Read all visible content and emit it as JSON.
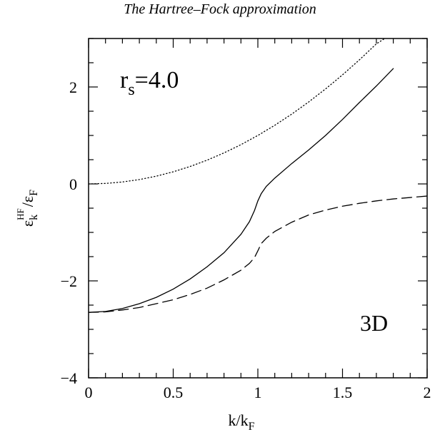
{
  "page_title": "The Hartree–Fock approximation",
  "chart_data": {
    "type": "line",
    "xlabel_main": "k/k",
    "xlabel_sub": "F",
    "ylabel": {
      "eps1": "ε",
      "eps1_sub": "k",
      "eps1_sup": "HF",
      "slash": "/",
      "eps2": "ε",
      "eps2_sub": "F"
    },
    "xlim": [
      0,
      2
    ],
    "ylim": [
      -4,
      3
    ],
    "xticks": [
      {
        "value": 0,
        "label": "0"
      },
      {
        "value": 0.5,
        "label": "0.5"
      },
      {
        "value": 1,
        "label": "1"
      },
      {
        "value": 1.5,
        "label": "1.5"
      },
      {
        "value": 2,
        "label": "2"
      }
    ],
    "yticks": [
      {
        "value": -4,
        "label": "−4"
      },
      {
        "value": -2,
        "label": "−2"
      },
      {
        "value": 0,
        "label": "0"
      },
      {
        "value": 2,
        "label": "2"
      }
    ],
    "annotations": {
      "rs_main": "r",
      "rs_sub": "s",
      "rs_value": "=4.0",
      "dim": "3D"
    },
    "series": [
      {
        "style": "dotted",
        "x": [
          0,
          0.1,
          0.2,
          0.3,
          0.4,
          0.5,
          0.6,
          0.7,
          0.8,
          0.9,
          1.0,
          1.1,
          1.2,
          1.3,
          1.4,
          1.5,
          1.6,
          1.7,
          1.75
        ],
        "y": [
          0,
          0.01,
          0.04,
          0.09,
          0.16,
          0.25,
          0.36,
          0.49,
          0.64,
          0.81,
          1.0,
          1.21,
          1.44,
          1.69,
          1.96,
          2.25,
          2.56,
          2.89,
          3.0
        ]
      },
      {
        "style": "solid",
        "x": [
          0,
          0.1,
          0.2,
          0.3,
          0.4,
          0.5,
          0.6,
          0.7,
          0.8,
          0.9,
          0.95,
          0.98,
          1.0,
          1.02,
          1.05,
          1.1,
          1.2,
          1.3,
          1.4,
          1.5,
          1.6,
          1.7,
          1.8
        ],
        "y": [
          -2.65,
          -2.63,
          -2.57,
          -2.47,
          -2.34,
          -2.17,
          -1.96,
          -1.71,
          -1.42,
          -1.04,
          -0.78,
          -0.55,
          -0.35,
          -0.2,
          -0.05,
          0.12,
          0.42,
          0.7,
          1.0,
          1.33,
          1.68,
          2.02,
          2.38
        ]
      },
      {
        "style": "dashed",
        "x": [
          0,
          0.1,
          0.2,
          0.3,
          0.4,
          0.5,
          0.6,
          0.7,
          0.8,
          0.9,
          0.95,
          0.98,
          1.0,
          1.02,
          1.05,
          1.1,
          1.2,
          1.3,
          1.4,
          1.5,
          1.6,
          1.7,
          1.8,
          1.9,
          2.0
        ],
        "y": [
          -2.65,
          -2.64,
          -2.6,
          -2.55,
          -2.47,
          -2.39,
          -2.28,
          -2.15,
          -1.98,
          -1.78,
          -1.64,
          -1.52,
          -1.38,
          -1.23,
          -1.12,
          -0.98,
          -0.79,
          -0.64,
          -0.54,
          -0.46,
          -0.4,
          -0.35,
          -0.31,
          -0.28,
          -0.25
        ]
      }
    ]
  }
}
